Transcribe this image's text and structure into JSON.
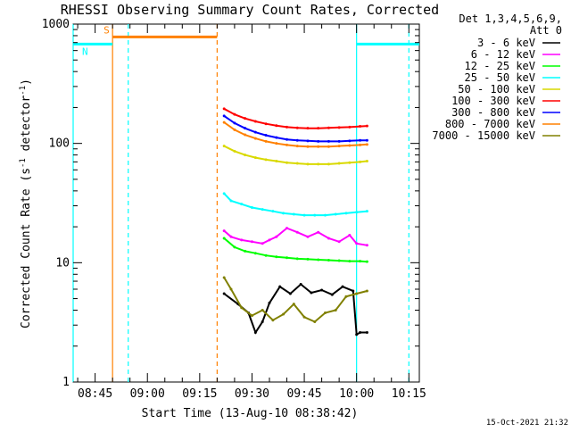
{
  "chart_data": {
    "type": "line",
    "title": "RHESSI Observing Summary Count Rates, Corrected",
    "xlabel": "Start Time (13-Aug-10 08:38:42)",
    "ylabel": "Corrected Count Rate (s-1 detector-1)",
    "ylabel_parts": {
      "prefix": "Corrected Count Rate (s",
      "sup1": "-1",
      "middle": " detector",
      "sup2": "-1",
      "suffix": ")"
    },
    "y_scale": "log",
    "ylim": [
      1,
      1000
    ],
    "xlim": [
      "08:38:42",
      "10:18:00"
    ],
    "x_tick_labels": [
      "08:45",
      "09:00",
      "09:15",
      "09:30",
      "09:45",
      "10:00",
      "10:15"
    ],
    "y_tick_labels": [
      {
        "value": 1,
        "label": "1"
      },
      {
        "value": 10,
        "label": "10"
      },
      {
        "value": 100,
        "label": "100"
      },
      {
        "value": 1000,
        "label": "1000"
      }
    ],
    "legend_header": [
      "Det 1,3,4,5,6,9,",
      "Att 0"
    ],
    "legend_placement": "right",
    "date_stamp": "15-Oct-2021 21:32",
    "series": [
      {
        "name": "3 - 6 keV",
        "color": "#000000",
        "x": [
          "09:22",
          "09:26",
          "09:29",
          "09:31",
          "09:33",
          "09:35",
          "09:38",
          "09:41",
          "09:44",
          "09:47",
          "09:50",
          "09:53",
          "09:56",
          "09:59",
          "10:00",
          "10:01",
          "10:03"
        ],
        "values": [
          5.5,
          4.5,
          3.8,
          2.6,
          3.2,
          4.6,
          6.3,
          5.5,
          6.6,
          5.6,
          5.9,
          5.4,
          6.3,
          5.8,
          2.5,
          2.6,
          2.6
        ]
      },
      {
        "name": "6 - 12 keV",
        "color": "#ff00ff",
        "x": [
          "09:22",
          "09:24",
          "09:27",
          "09:30",
          "09:33",
          "09:35",
          "09:37",
          "09:40",
          "09:43",
          "09:46",
          "09:49",
          "09:52",
          "09:55",
          "09:58",
          "10:00",
          "10:03"
        ],
        "values": [
          18.5,
          16.5,
          15.5,
          15.0,
          14.5,
          15.5,
          16.5,
          19.5,
          18.0,
          16.5,
          18.0,
          16.0,
          15.0,
          17.0,
          14.5,
          14.0
        ]
      },
      {
        "name": "12 - 25 keV",
        "color": "#00ff00",
        "x": [
          "09:22",
          "09:25",
          "09:28",
          "09:31",
          "09:34",
          "09:37",
          "09:40",
          "09:43",
          "09:46",
          "09:49",
          "09:52",
          "09:55",
          "09:58",
          "10:01",
          "10:03"
        ],
        "values": [
          16.0,
          13.5,
          12.5,
          12.0,
          11.5,
          11.2,
          11.0,
          10.8,
          10.7,
          10.6,
          10.5,
          10.4,
          10.3,
          10.3,
          10.2
        ]
      },
      {
        "name": "25 - 50 keV",
        "color": "#00ffff",
        "x": [
          "09:22",
          "09:24",
          "09:27",
          "09:30",
          "09:33",
          "09:36",
          "09:39",
          "09:42",
          "09:45",
          "09:48",
          "09:51",
          "09:54",
          "09:57",
          "10:00",
          "10:03"
        ],
        "values": [
          38,
          33,
          31,
          29,
          28,
          27,
          26,
          25.5,
          25,
          25,
          25,
          25.5,
          26,
          26.5,
          27
        ]
      },
      {
        "name": "50 - 100 keV",
        "color": "#d9d900",
        "x": [
          "09:22",
          "09:25",
          "09:28",
          "09:31",
          "09:34",
          "09:37",
          "09:40",
          "09:43",
          "09:46",
          "09:49",
          "09:52",
          "09:55",
          "09:58",
          "10:01",
          "10:03"
        ],
        "values": [
          95,
          86,
          80,
          76,
          73,
          71,
          69,
          68,
          67,
          67,
          67,
          68,
          69,
          70,
          71
        ]
      },
      {
        "name": "100 - 300 keV",
        "color": "#ff0000",
        "x": [
          "09:22",
          "09:25",
          "09:28",
          "09:31",
          "09:34",
          "09:37",
          "09:40",
          "09:43",
          "09:46",
          "09:49",
          "09:52",
          "09:55",
          "09:58",
          "10:01",
          "10:03"
        ],
        "values": [
          195,
          175,
          162,
          153,
          146,
          141,
          137,
          135,
          134,
          134,
          135,
          136,
          137,
          139,
          140
        ]
      },
      {
        "name": "300 - 800 keV",
        "color": "#0000ff",
        "x": [
          "09:22",
          "09:25",
          "09:28",
          "09:31",
          "09:34",
          "09:37",
          "09:40",
          "09:43",
          "09:46",
          "09:49",
          "09:52",
          "09:55",
          "09:58",
          "10:01",
          "10:03"
        ],
        "values": [
          170,
          148,
          134,
          124,
          117,
          112,
          108,
          106,
          105,
          104,
          104,
          104,
          105,
          106,
          106
        ]
      },
      {
        "name": "800 - 7000 keV",
        "color": "#ff8000",
        "x": [
          "09:22",
          "09:25",
          "09:28",
          "09:31",
          "09:34",
          "09:37",
          "09:40",
          "09:43",
          "09:46",
          "09:49",
          "09:52",
          "09:55",
          "09:58",
          "10:01",
          "10:03"
        ],
        "values": [
          150,
          130,
          118,
          110,
          104,
          100,
          97,
          95,
          94,
          94,
          94,
          95,
          96,
          97,
          98
        ]
      },
      {
        "name": "7000 - 15000 keV",
        "color": "#808000",
        "x": [
          "09:22",
          "09:24",
          "09:27",
          "09:30",
          "09:33",
          "09:36",
          "09:39",
          "09:42",
          "09:45",
          "09:48",
          "09:51",
          "09:54",
          "09:57",
          "10:00",
          "10:03"
        ],
        "values": [
          7.5,
          6.0,
          4.2,
          3.6,
          4.0,
          3.3,
          3.7,
          4.5,
          3.5,
          3.2,
          3.8,
          4.0,
          5.2,
          5.5,
          5.8
        ]
      }
    ],
    "flag_markers": [
      {
        "label": "S",
        "color": "#ff8000",
        "x_start": "08:50:00",
        "x_end": "09:20:00",
        "value": 780
      },
      {
        "label": "N",
        "color": "#00ffff",
        "x_start": "08:38:42",
        "x_end": "08:50:00",
        "value": 680
      },
      {
        "label": "",
        "color": "#00ffff",
        "x_start": "10:00:00",
        "x_end": "10:18:00",
        "value": 680
      }
    ],
    "vertical_lines": [
      {
        "x": "08:38:42",
        "color": "#00ffff",
        "style": "solid"
      },
      {
        "x": "08:50:00",
        "color": "#ff8000",
        "style": "solid"
      },
      {
        "x": "08:54:30",
        "color": "#00ffff",
        "style": "dashed"
      },
      {
        "x": "09:20:00",
        "color": "#ff8000",
        "style": "dashed"
      },
      {
        "x": "10:00:00",
        "color": "#00ffff",
        "style": "solid"
      },
      {
        "x": "10:15:00",
        "color": "#00ffff",
        "style": "dashed"
      }
    ]
  }
}
